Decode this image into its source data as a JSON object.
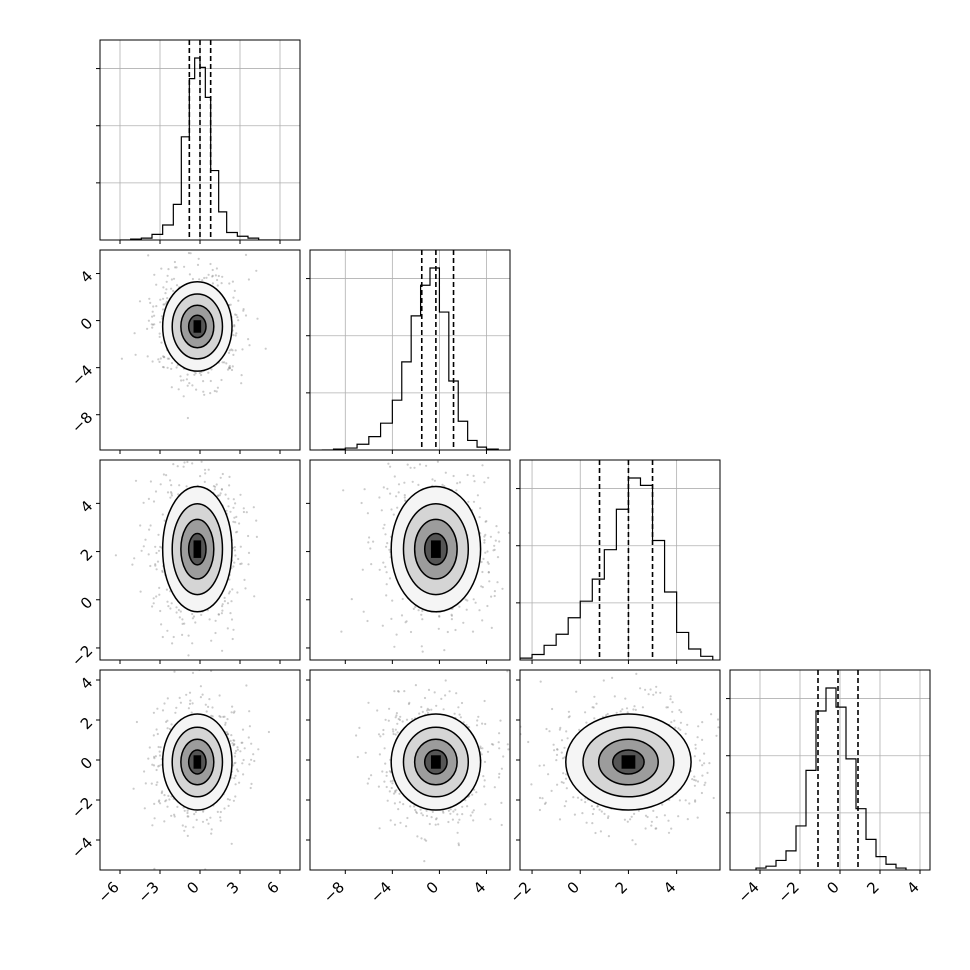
{
  "chart_data": {
    "type": "corner",
    "parameters": [
      {
        "xlim": [
          -7.5,
          7.5
        ],
        "ticks": [
          -6,
          -3,
          0,
          3,
          6
        ],
        "tick_labels": [
          "−6",
          "−3",
          "0",
          "3",
          "6"
        ],
        "quantiles": [
          -0.8,
          0.0,
          0.8
        ],
        "hist_bins": [
          -6,
          -5.2,
          -4.4,
          -3.6,
          -2.8,
          -2.0,
          -1.4,
          -0.8,
          -0.4,
          0.0,
          0.4,
          0.8,
          1.4,
          2.0,
          2.8,
          3.6,
          4.4,
          5.2,
          6.0
        ],
        "hist_counts": [
          0.0,
          0.005,
          0.01,
          0.03,
          0.08,
          0.19,
          0.55,
          0.86,
          0.97,
          0.92,
          0.76,
          0.37,
          0.15,
          0.04,
          0.02,
          0.01,
          0.0,
          0.0
        ]
      },
      {
        "xlim": [
          -11,
          6
        ],
        "ticks": [
          -8,
          -4,
          0,
          4
        ],
        "tick_labels": [
          "−8",
          "−4",
          "0",
          "4"
        ],
        "quantiles": [
          -1.5,
          -0.3,
          1.2
        ],
        "hist_bins": [
          -10,
          -9,
          -8,
          -7,
          -6,
          -5,
          -4,
          -3.2,
          -2.4,
          -1.6,
          -0.8,
          0.0,
          0.8,
          1.6,
          2.4,
          3.2,
          4.0,
          5.0
        ],
        "hist_counts": [
          0.0,
          0.005,
          0.01,
          0.03,
          0.07,
          0.14,
          0.26,
          0.46,
          0.7,
          0.86,
          0.95,
          0.72,
          0.36,
          0.15,
          0.05,
          0.015,
          0.005
        ]
      },
      {
        "xlim": [
          -2.5,
          5.8
        ],
        "ticks": [
          -2,
          0,
          2,
          4
        ],
        "tick_labels": [
          "−2",
          "0",
          "2",
          "4"
        ],
        "quantiles": [
          0.8,
          2.0,
          3.0
        ],
        "hist_bins": [
          -2.5,
          -2.0,
          -1.5,
          -1.0,
          -0.5,
          0.0,
          0.5,
          1.0,
          1.5,
          2.0,
          2.5,
          3.0,
          3.5,
          4.0,
          4.5,
          5.0,
          5.5
        ],
        "hist_counts": [
          0.01,
          0.03,
          0.08,
          0.14,
          0.23,
          0.32,
          0.44,
          0.6,
          0.82,
          0.99,
          0.95,
          0.65,
          0.37,
          0.15,
          0.06,
          0.02
        ]
      },
      {
        "xlim": [
          -5.5,
          4.5
        ],
        "ticks": [
          -4,
          -2,
          0,
          2,
          4
        ],
        "tick_labels": [
          "−4",
          "−2",
          "0",
          "2",
          "4"
        ],
        "quantiles": [
          -1.1,
          -0.1,
          0.9
        ],
        "hist_bins": [
          -4.2,
          -3.7,
          -3.2,
          -2.7,
          -2.2,
          -1.7,
          -1.2,
          -0.7,
          -0.2,
          0.3,
          0.8,
          1.3,
          1.8,
          2.3,
          2.8,
          3.3
        ],
        "hist_counts": [
          0.01,
          0.02,
          0.05,
          0.1,
          0.23,
          0.52,
          0.83,
          0.95,
          0.85,
          0.58,
          0.32,
          0.16,
          0.07,
          0.03,
          0.01
        ]
      }
    ],
    "pairs": [
      {
        "row": 1,
        "col": 0,
        "center": [
          -0.2,
          -0.5
        ],
        "sd": [
          1.3,
          1.9
        ],
        "rho": 0.0
      },
      {
        "row": 2,
        "col": 0,
        "center": [
          -0.2,
          2.1
        ],
        "sd": [
          1.3,
          1.3
        ],
        "rho": 0.0
      },
      {
        "row": 2,
        "col": 1,
        "center": [
          -0.3,
          2.1
        ],
        "sd": [
          1.9,
          1.3
        ],
        "rho": 0.0
      },
      {
        "row": 3,
        "col": 0,
        "center": [
          -0.2,
          -0.1
        ],
        "sd": [
          1.3,
          1.2
        ],
        "rho": 0.0
      },
      {
        "row": 3,
        "col": 1,
        "center": [
          -0.3,
          -0.1
        ],
        "sd": [
          1.9,
          1.2
        ],
        "rho": 0.0
      },
      {
        "row": 3,
        "col": 2,
        "center": [
          2.0,
          -0.1
        ],
        "sd": [
          1.3,
          1.2
        ],
        "rho": 0.0
      }
    ],
    "grid": true
  }
}
